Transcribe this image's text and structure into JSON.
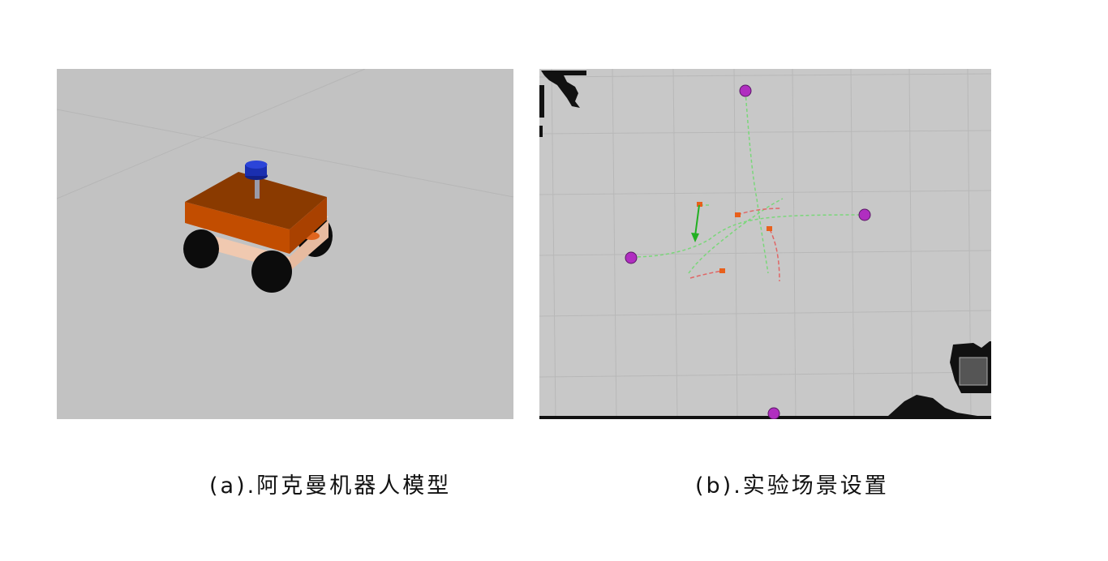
{
  "figure": {
    "panel_a": {
      "caption": "(a).阿克曼机器人模型",
      "colors": {
        "background": "#c2c2c2",
        "chassis_top": "#8a3a00",
        "chassis_side": "#c24d00",
        "base_body": "#f0c9b0",
        "lidar": "#1a2fb0",
        "wheel": "#0c0c0c"
      }
    },
    "panel_b": {
      "caption": "(b).实验场景设置",
      "colors": {
        "background": "#c8c8c8",
        "goal_marker": "#b02ec0",
        "path_planned": "#7ad77a",
        "path_predicted": "#e06666",
        "robot_marker": "#e8601c",
        "arrow": "#22b022",
        "obstacle": "#111111"
      }
    }
  }
}
